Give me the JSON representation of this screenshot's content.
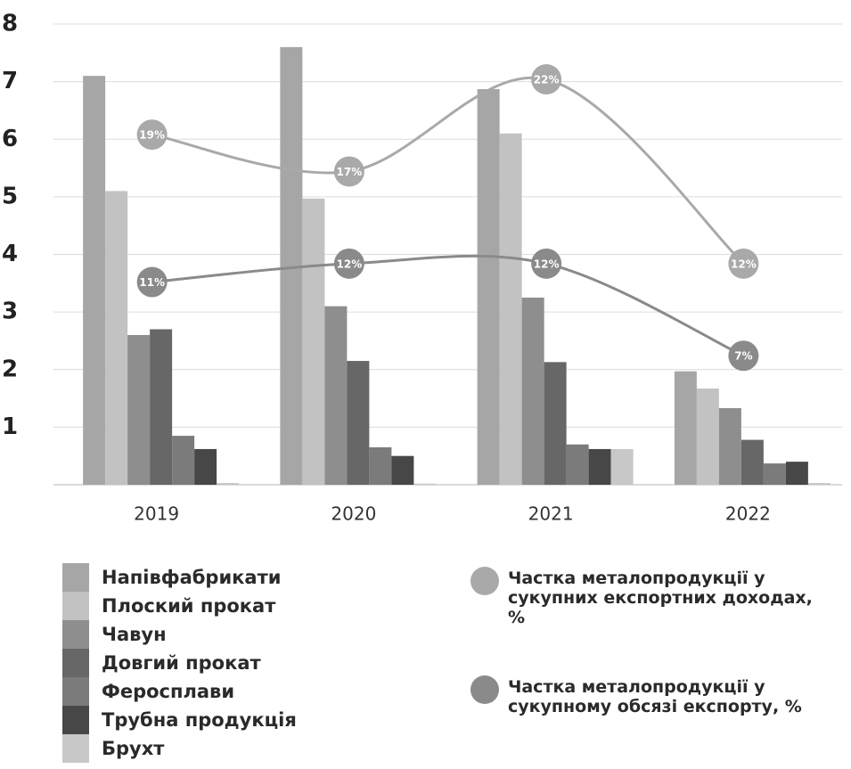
{
  "chart_data": {
    "type": "bar",
    "categories": [
      "2019",
      "2020",
      "2021",
      "2022"
    ],
    "ylim": [
      0,
      8
    ],
    "yticks": [
      1,
      2,
      3,
      4,
      5,
      6,
      7,
      8
    ],
    "grid": true,
    "y2lim": [
      0,
      25
    ],
    "series": [
      {
        "name": "Напівфабрикати",
        "color": "#a6a6a6",
        "values": [
          7.1,
          7.6,
          6.87,
          1.97
        ]
      },
      {
        "name": "Плоский прокат",
        "color": "#c2c2c2",
        "values": [
          5.1,
          4.97,
          6.1,
          1.67
        ]
      },
      {
        "name": "Чавун",
        "color": "#8e8e8e",
        "values": [
          2.6,
          3.1,
          3.25,
          1.33
        ]
      },
      {
        "name": "Довгий прокат",
        "color": "#676767",
        "values": [
          2.7,
          2.15,
          2.13,
          0.78
        ]
      },
      {
        "name": "Феросплави",
        "color": "#7b7b7b",
        "values": [
          0.85,
          0.65,
          0.7,
          0.37
        ]
      },
      {
        "name": "Трубна продукція",
        "color": "#474747",
        "values": [
          0.62,
          0.5,
          0.62,
          0.4
        ]
      },
      {
        "name": "Брухт",
        "color": "#c8c8c8",
        "values": [
          0.03,
          0.02,
          0.62,
          0.03
        ]
      },
      {
        "name": "Частка металопродукції у сукупних експортних доходах, %",
        "type": "line",
        "axis": "y2",
        "color": "#a9a9a9",
        "values": [
          19,
          17,
          22,
          12
        ],
        "value_labels": [
          "19%",
          "17%",
          "22%",
          "12%"
        ]
      },
      {
        "name": "Частка металопродукції у сукупному обсязі експорту, %",
        "type": "line",
        "axis": "y2",
        "color": "#8a8a8a",
        "values": [
          11,
          12,
          12,
          7
        ],
        "value_labels": [
          "11%",
          "12%",
          "12%",
          "7%"
        ]
      }
    ]
  }
}
